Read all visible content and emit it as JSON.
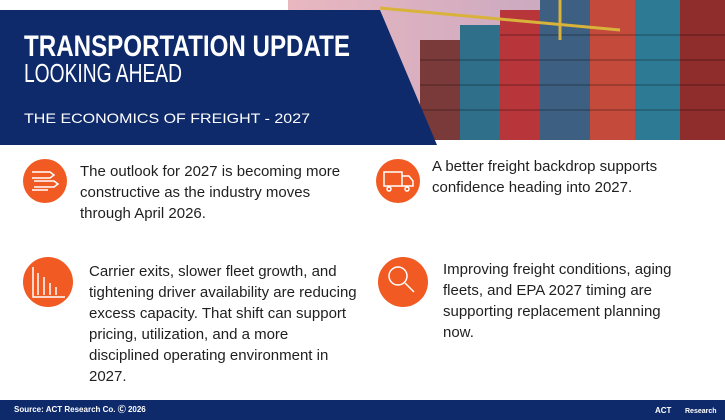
{
  "header": {
    "title": "TRANSPORTATION UPDATE",
    "subtitle": "LOOKING AHEAD",
    "tagline": "THE ECONOMICS OF FREIGHT - 2027"
  },
  "items": [
    {
      "text": "The outlook for 2027 is becoming more constructive as the industry moves through April 2026."
    },
    {
      "text": "A better freight backdrop supports confidence heading into 2027."
    },
    {
      "text": "Carrier exits, slower fleet growth, and tightening driver availability are reducing excess capacity. That shift can support pricing, utilization, and a more disciplined operating environment in 2027."
    },
    {
      "text": "Improving freight conditions, aging fleets, and EPA 2027 timing are supporting replacement planning now."
    }
  ],
  "footer": {
    "source": "Source: ACT Research Co. Ⓒ 2026",
    "logo": "ACT",
    "logo_sub": "Research"
  }
}
